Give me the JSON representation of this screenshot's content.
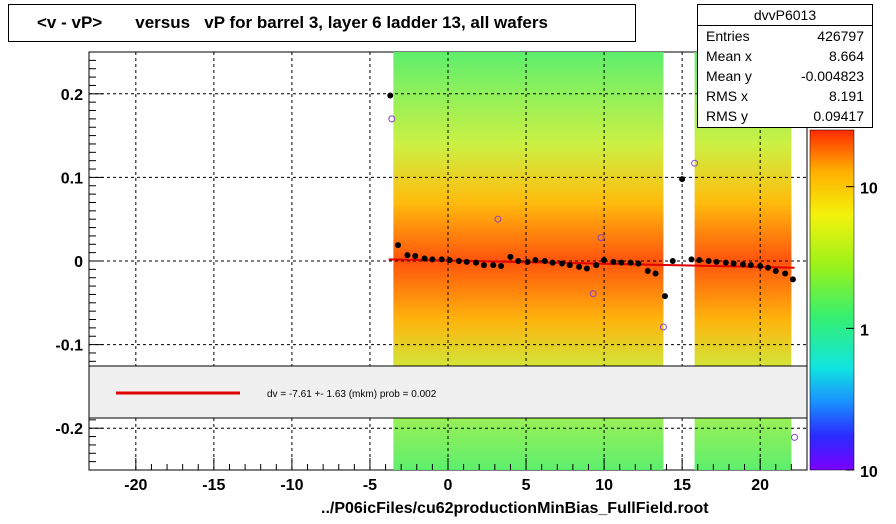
{
  "title": {
    "text": "<v - vP>       versus   vP for barrel 3, layer 6 ladder 13, all wafers"
  },
  "stats": {
    "name": "dvvP6013",
    "rows": [
      {
        "label": "Entries",
        "value": "426797"
      },
      {
        "label": "Mean x",
        "value": "8.664"
      },
      {
        "label": "Mean y",
        "value": "-0.004823"
      },
      {
        "label": "RMS x",
        "value": "8.191"
      },
      {
        "label": "RMS y",
        "value": "0.09417"
      }
    ]
  },
  "fit_legend": {
    "text": "dv =   -7.61 +-  1.63 (mkm) prob = 0.002",
    "color": "#e00000"
  },
  "footer": {
    "text": "../P06icFiles/cu62productionMinBias_FullField.root"
  },
  "colors": {
    "profile_points": "#000000",
    "fit_line": "#e00000"
  },
  "chart_data": {
    "type": "heatmap",
    "title": "<v - vP>       versus   vP for barrel 3, layer 6 ladder 13, all wafers",
    "xlim": [
      -23,
      23
    ],
    "ylim": [
      -0.25,
      0.25
    ],
    "x_ticks": [
      "-20",
      "-15",
      "-10",
      "-5",
      "0",
      "5",
      "10",
      "15",
      "20"
    ],
    "y_ticks": [
      "0.2",
      "0.1",
      "0",
      "-0.1",
      "-0.2"
    ],
    "grid": true,
    "z_scale": "log",
    "z_labels": [
      "10",
      "1",
      "10"
    ],
    "z_label_positions": [
      10,
      1,
      0.1
    ],
    "filled_x_ranges": [
      [
        -3.5,
        13.8
      ],
      [
        15.8,
        22.0
      ]
    ],
    "profile": {
      "x": [
        -3.7,
        -3.2,
        -2.6,
        -2.1,
        -1.5,
        -1.0,
        -0.4,
        0.1,
        0.7,
        1.2,
        1.8,
        2.3,
        2.9,
        3.4,
        4.0,
        4.5,
        5.1,
        5.6,
        6.2,
        6.7,
        7.3,
        7.8,
        8.4,
        8.9,
        9.5,
        10.0,
        10.6,
        11.1,
        11.7,
        12.2,
        12.8,
        13.3,
        13.9,
        14.4,
        15.0,
        15.6,
        16.1,
        16.7,
        17.2,
        17.8,
        18.3,
        18.9,
        19.4,
        20.0,
        20.5,
        21.0,
        21.6,
        22.1
      ],
      "y": [
        0.198,
        0.019,
        0.007,
        0.006,
        0.003,
        0.002,
        0.002,
        0.001,
        0.0,
        -0.001,
        -0.002,
        -0.005,
        -0.005,
        -0.006,
        0.005,
        0.0,
        -0.001,
        0.001,
        0.0,
        -0.002,
        -0.003,
        -0.005,
        -0.007,
        -0.009,
        -0.005,
        0.001,
        -0.001,
        -0.002,
        -0.002,
        -0.003,
        -0.012,
        -0.015,
        -0.042,
        0.0,
        0.098,
        0.002,
        0.001,
        0.0,
        -0.001,
        -0.002,
        -0.003,
        -0.004,
        -0.005,
        -0.006,
        -0.008,
        -0.012,
        -0.015,
        -0.022
      ]
    },
    "outliers": {
      "x": [
        -3.6,
        3.2,
        9.8,
        9.3,
        13.8,
        15.8,
        22.2
      ],
      "y": [
        0.17,
        0.05,
        0.028,
        -0.039,
        -0.079,
        0.117,
        -0.211
      ]
    },
    "fit_line": {
      "x": [
        -3.8,
        22.2
      ],
      "y": [
        0.002,
        -0.008
      ]
    }
  }
}
